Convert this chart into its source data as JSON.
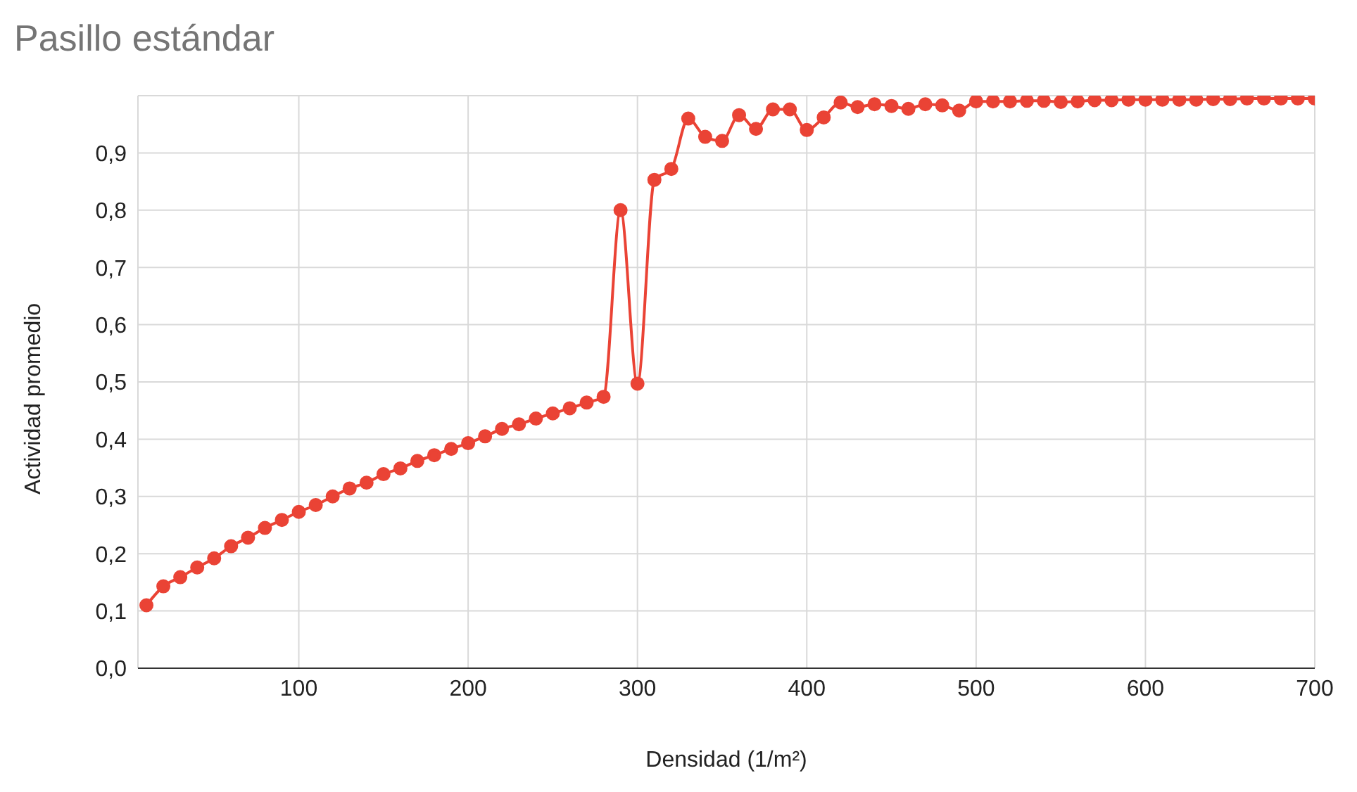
{
  "chart_data": {
    "type": "line",
    "title": "Pasillo estándar",
    "xlabel": "Densidad (1/m²)",
    "ylabel": "Actividad promedio",
    "x": [
      10,
      20,
      30,
      40,
      50,
      60,
      70,
      80,
      90,
      100,
      110,
      120,
      130,
      140,
      150,
      160,
      170,
      180,
      190,
      200,
      210,
      220,
      230,
      240,
      250,
      260,
      270,
      280,
      290,
      300,
      310,
      320,
      330,
      340,
      350,
      360,
      370,
      380,
      390,
      400,
      410,
      420,
      430,
      440,
      450,
      460,
      470,
      480,
      490,
      500,
      510,
      520,
      530,
      540,
      550,
      560,
      570,
      580,
      590,
      600,
      610,
      620,
      630,
      640,
      650,
      660,
      670,
      680,
      690,
      700
    ],
    "series": [
      {
        "color": "#ea4335",
        "values": [
          0.11,
          0.143,
          0.159,
          0.176,
          0.192,
          0.213,
          0.228,
          0.245,
          0.259,
          0.273,
          0.285,
          0.3,
          0.314,
          0.324,
          0.339,
          0.349,
          0.362,
          0.372,
          0.383,
          0.393,
          0.405,
          0.418,
          0.426,
          0.436,
          0.445,
          0.454,
          0.464,
          0.474,
          0.8,
          0.497,
          0.853,
          0.872,
          0.96,
          0.928,
          0.921,
          0.966,
          0.942,
          0.976,
          0.976,
          0.94,
          0.962,
          0.988,
          0.98,
          0.985,
          0.982,
          0.977,
          0.985,
          0.983,
          0.974,
          0.99,
          0.99,
          0.99,
          0.991,
          0.991,
          0.989,
          0.99,
          0.992,
          0.992,
          0.993,
          0.993,
          0.993,
          0.993,
          0.993,
          0.994,
          0.994,
          0.995,
          0.995,
          0.995,
          0.995,
          0.995
        ]
      }
    ],
    "xlim": [
      5,
      700
    ],
    "xticks": [
      100,
      200,
      300,
      400,
      500,
      600,
      700
    ],
    "ylim": [
      0,
      1
    ],
    "yticks": [
      {
        "value": 0,
        "label": "0,0"
      },
      {
        "value": 0.1,
        "label": "0,1"
      },
      {
        "value": 0.2,
        "label": "0,2"
      },
      {
        "value": 0.3,
        "label": "0,3"
      },
      {
        "value": 0.4,
        "label": "0,4"
      },
      {
        "value": 0.5,
        "label": "0,5"
      },
      {
        "value": 0.6,
        "label": "0,6"
      },
      {
        "value": 0.7,
        "label": "0,7"
      },
      {
        "value": 0.8,
        "label": "0,8"
      },
      {
        "value": 0.9,
        "label": "0,9"
      }
    ],
    "grid": true,
    "marker": "circle",
    "legend": false
  }
}
